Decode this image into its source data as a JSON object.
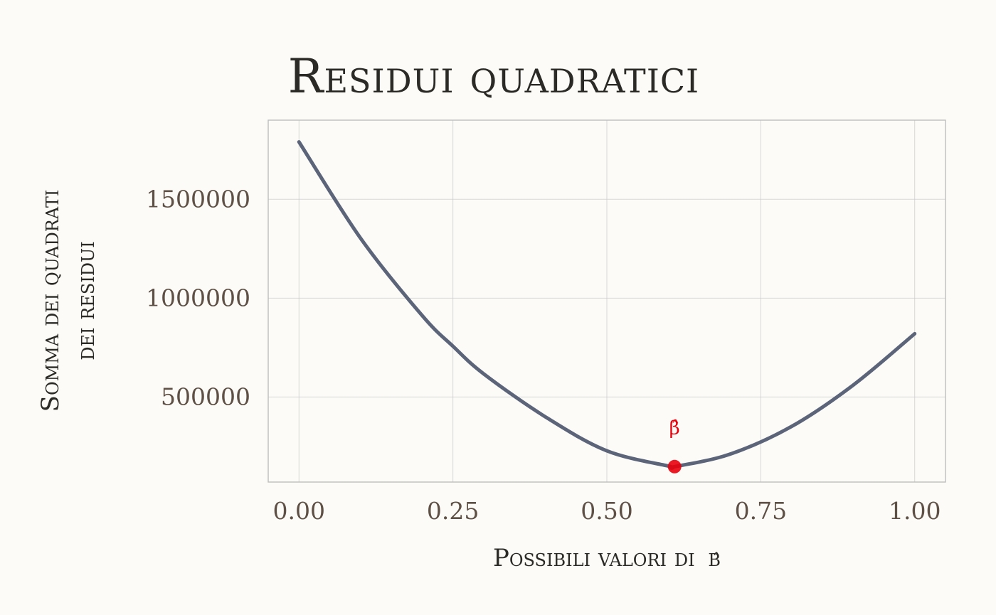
{
  "chart_data": {
    "type": "line",
    "title": "Residui quadratici",
    "xlabel": "Possibili valori di",
    "xlabel_symbol": "β̂",
    "ylabel_line1": "Somma dei quadrati",
    "ylabel_line2": "dei residui",
    "xlim": [
      -0.05,
      1.05
    ],
    "ylim": [
      70000,
      1900000
    ],
    "x_ticks": [
      0,
      0.25,
      0.5,
      0.75,
      1
    ],
    "x_tick_labels": [
      "0.00",
      "0.25",
      "0.50",
      "0.75",
      "1.00"
    ],
    "y_ticks": [
      500000,
      1000000,
      1500000
    ],
    "y_tick_labels": [
      "500000",
      "1000000",
      "1500000"
    ],
    "grid": true,
    "series": [
      {
        "color": "#5b6478",
        "x": [
          0,
          0.1,
          0.2,
          0.25,
          0.3,
          0.4,
          0.5,
          0.6,
          0.61,
          0.7,
          0.8,
          0.9,
          1.0
        ],
        "values": [
          1790000,
          1303000,
          912000,
          757000,
          617000,
          400000,
          228000,
          151000,
          148000,
          211000,
          351000,
          560000,
          820000
        ]
      }
    ],
    "annotation": {
      "label": "β̂",
      "x": 0.61,
      "y": 148000,
      "color": "#e8000b"
    }
  }
}
